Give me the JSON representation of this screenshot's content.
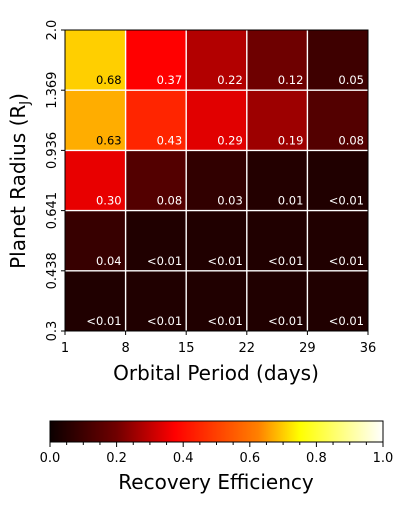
{
  "chart_data": {
    "type": "heatmap",
    "xlabel": "Orbital Period (days)",
    "ylabel": "Planet Radius (R",
    "ylabel_subscript": "J",
    "ylabel_suffix": ")",
    "x_edges": [
      "1",
      "8",
      "15",
      "22",
      "29",
      "36"
    ],
    "y_edges": [
      "0.3",
      "0.438",
      "0.641",
      "0.936",
      "1.369",
      "2.0"
    ],
    "rows": [
      {
        "y_range": [
          "1.369",
          "2.0"
        ],
        "values": [
          0.68,
          0.37,
          0.22,
          0.12,
          0.05
        ],
        "labels": [
          "0.68",
          "0.37",
          "0.22",
          "0.12",
          "0.05"
        ]
      },
      {
        "y_range": [
          "0.936",
          "1.369"
        ],
        "values": [
          0.63,
          0.43,
          0.29,
          0.19,
          0.08
        ],
        "labels": [
          "0.63",
          "0.43",
          "0.29",
          "0.19",
          "0.08"
        ]
      },
      {
        "y_range": [
          "0.641",
          "0.936"
        ],
        "values": [
          0.3,
          0.08,
          0.03,
          0.01,
          0.005
        ],
        "labels": [
          "0.30",
          "0.08",
          "0.03",
          "0.01",
          "<0.01"
        ]
      },
      {
        "y_range": [
          "0.438",
          "0.641"
        ],
        "values": [
          0.04,
          0.005,
          0.005,
          0.005,
          0.005
        ],
        "labels": [
          "0.04",
          "<0.01",
          "<0.01",
          "<0.01",
          "<0.01"
        ]
      },
      {
        "y_range": [
          "0.3",
          "0.438"
        ],
        "values": [
          0.005,
          0.005,
          0.005,
          0.005,
          0.005
        ],
        "labels": [
          "<0.01",
          "<0.01",
          "<0.01",
          "<0.01",
          "<0.01"
        ]
      }
    ],
    "colormap": "hot",
    "colorbar": {
      "label": "Recovery Efficiency",
      "range": [
        0.0,
        1.0
      ],
      "ticks": [
        "0.0",
        "0.2",
        "0.4",
        "0.6",
        "0.8",
        "1.0"
      ]
    },
    "grid": true,
    "grid_color": "#ffffff"
  }
}
